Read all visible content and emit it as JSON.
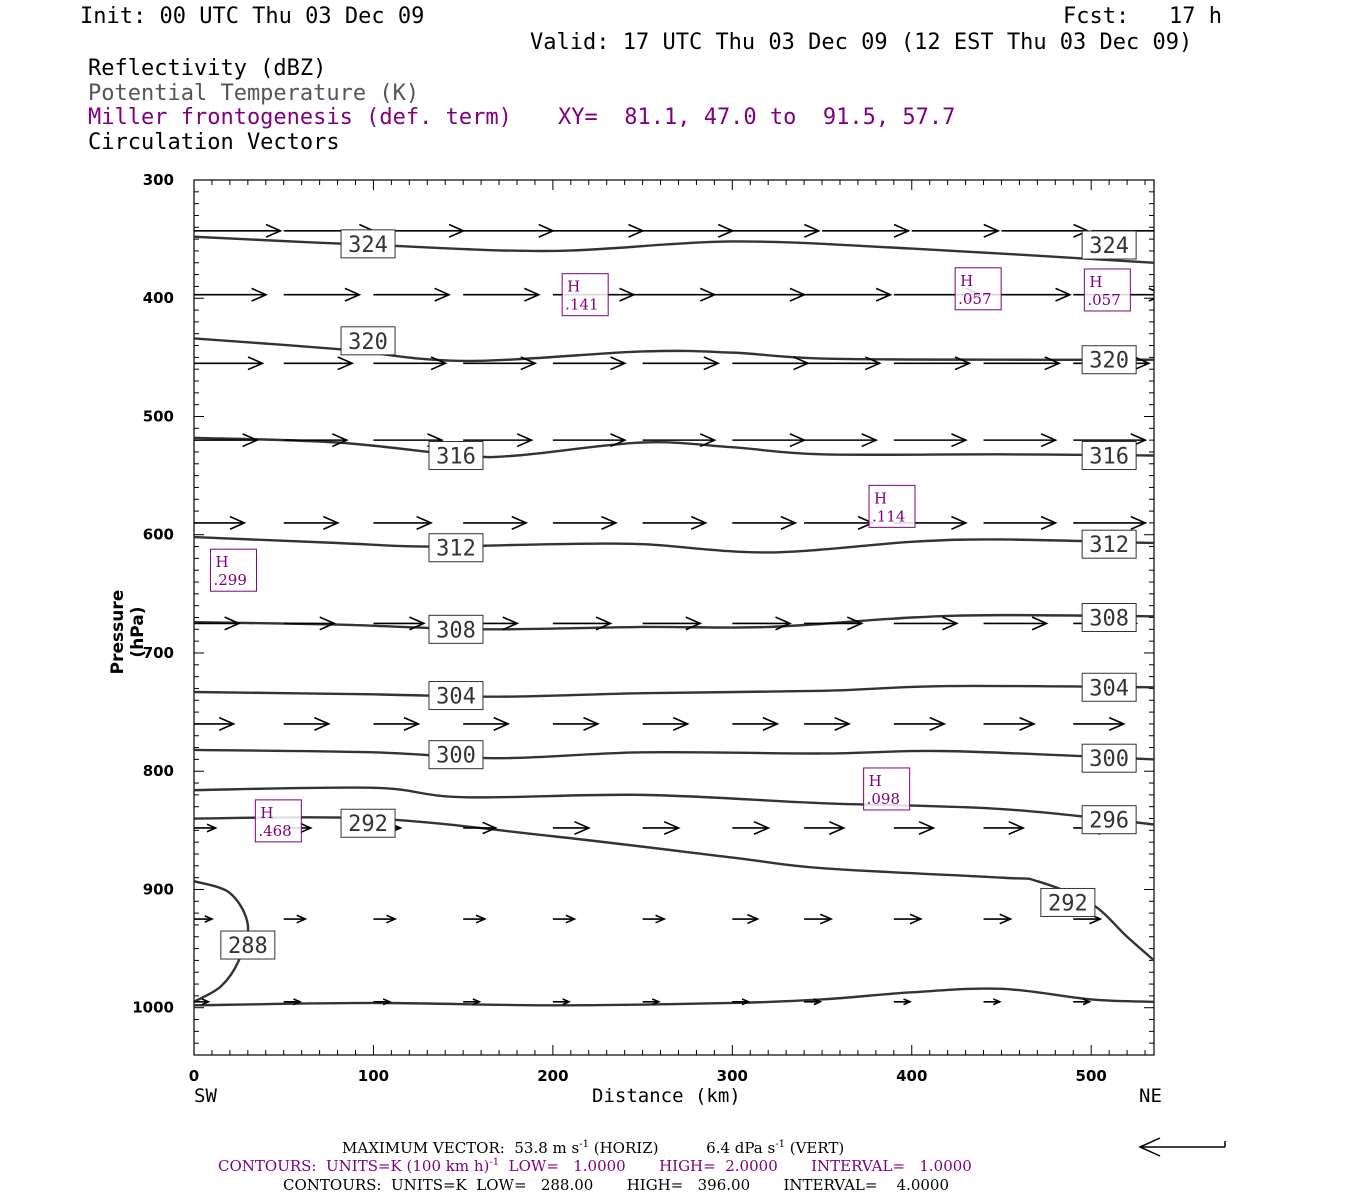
{
  "header": {
    "init": "Init: 00 UTC Thu 03 Dec 09",
    "fcst": "Fcst:   17 h",
    "valid": "Valid: 17 UTC Thu 03 Dec 09 (12 EST Thu 03 Dec 09)",
    "fields": [
      {
        "label": "Reflectivity (dBZ)",
        "color": "#000000"
      },
      {
        "label": "Potential Temperature (K)",
        "color": "#555555"
      },
      {
        "label": "Miller frontogenesis (def. term)",
        "color": "#800080"
      },
      {
        "label": "Circulation Vectors",
        "color": "#000000"
      }
    ],
    "xy": "XY=  81.1, 47.0 to  91.5, 57.7"
  },
  "chart_data": {
    "type": "line",
    "chart": "cross-section",
    "xlabel": "Distance (km)",
    "ylabel": "Pressure (hPa)",
    "xlim": [
      0,
      535
    ],
    "ylim": [
      1040,
      300
    ],
    "x_ticks": [
      0,
      100,
      200,
      300,
      400,
      500
    ],
    "y_ticks": [
      300,
      400,
      500,
      600,
      700,
      800,
      900,
      1000
    ],
    "left_end": "SW",
    "right_end": "NE",
    "theta_contours": [
      {
        "value": "324",
        "points": [
          [
            0,
            348
          ],
          [
            100,
            355
          ],
          [
            200,
            360
          ],
          [
            300,
            352
          ],
          [
            400,
            358
          ],
          [
            535,
            370
          ]
        ]
      },
      {
        "value": "320",
        "points": [
          [
            0,
            434
          ],
          [
            80,
            443
          ],
          [
            150,
            453
          ],
          [
            250,
            445
          ],
          [
            300,
            446
          ],
          [
            350,
            451
          ],
          [
            450,
            452
          ],
          [
            535,
            452
          ]
        ]
      },
      {
        "value": "316",
        "points": [
          [
            0,
            518
          ],
          [
            80,
            522
          ],
          [
            150,
            533
          ],
          [
            180,
            533
          ],
          [
            250,
            522
          ],
          [
            300,
            526
          ],
          [
            350,
            532
          ],
          [
            450,
            532
          ],
          [
            535,
            533
          ]
        ]
      },
      {
        "value": "312",
        "points": [
          [
            0,
            602
          ],
          [
            80,
            607
          ],
          [
            130,
            610
          ],
          [
            200,
            608
          ],
          [
            250,
            608
          ],
          [
            320,
            615
          ],
          [
            400,
            606
          ],
          [
            450,
            604
          ],
          [
            535,
            607
          ]
        ]
      },
      {
        "value": "308",
        "points": [
          [
            0,
            674
          ],
          [
            80,
            676
          ],
          [
            160,
            680
          ],
          [
            250,
            678
          ],
          [
            320,
            678
          ],
          [
            400,
            670
          ],
          [
            450,
            668
          ],
          [
            535,
            669
          ]
        ]
      },
      {
        "value": "304",
        "points": [
          [
            0,
            733
          ],
          [
            100,
            735
          ],
          [
            170,
            737
          ],
          [
            250,
            734
          ],
          [
            350,
            732
          ],
          [
            420,
            728
          ],
          [
            535,
            729
          ]
        ]
      },
      {
        "value": "300",
        "points": [
          [
            0,
            782
          ],
          [
            100,
            784
          ],
          [
            170,
            789
          ],
          [
            250,
            784
          ],
          [
            350,
            785
          ],
          [
            420,
            783
          ],
          [
            535,
            790
          ]
        ]
      },
      {
        "value": "296",
        "points": [
          [
            0,
            816
          ],
          [
            100,
            814
          ],
          [
            150,
            822
          ],
          [
            250,
            820
          ],
          [
            350,
            827
          ],
          [
            450,
            832
          ],
          [
            535,
            845
          ]
        ]
      },
      {
        "value": "292",
        "points": [
          [
            0,
            840
          ],
          [
            100,
            840
          ],
          [
            200,
            855
          ],
          [
            300,
            873
          ],
          [
            350,
            882
          ],
          [
            450,
            890
          ],
          [
            470,
            893
          ],
          [
            500,
            912
          ],
          [
            520,
            940
          ],
          [
            535,
            960
          ]
        ]
      },
      {
        "value": "288",
        "points": [
          [
            0,
            893
          ],
          [
            20,
            903
          ],
          [
            30,
            930
          ],
          [
            25,
            960
          ],
          [
            15,
            982
          ],
          [
            0,
            995
          ]
        ]
      },
      {
        "value": "",
        "points": [
          [
            0,
            998
          ],
          [
            100,
            996
          ],
          [
            200,
            998
          ],
          [
            300,
            996
          ],
          [
            350,
            993
          ],
          [
            400,
            987
          ],
          [
            450,
            984
          ],
          [
            500,
            993
          ],
          [
            535,
            995
          ]
        ]
      }
    ],
    "contour_labels": [
      {
        "value": "324",
        "x": 97,
        "p": 354
      },
      {
        "value": "324",
        "x": 510,
        "p": 355
      },
      {
        "value": "320",
        "x": 97,
        "p": 436
      },
      {
        "value": "320",
        "x": 510,
        "p": 452
      },
      {
        "value": "316",
        "x": 146,
        "p": 533
      },
      {
        "value": "316",
        "x": 510,
        "p": 533
      },
      {
        "value": "312",
        "x": 146,
        "p": 611
      },
      {
        "value": "312",
        "x": 510,
        "p": 608
      },
      {
        "value": "308",
        "x": 146,
        "p": 680
      },
      {
        "value": "308",
        "x": 510,
        "p": 670
      },
      {
        "value": "304",
        "x": 146,
        "p": 736
      },
      {
        "value": "304",
        "x": 510,
        "p": 729
      },
      {
        "value": "300",
        "x": 146,
        "p": 786
      },
      {
        "value": "300",
        "x": 510,
        "p": 789
      },
      {
        "value": "292",
        "x": 97,
        "p": 844
      },
      {
        "value": "296",
        "x": 510,
        "p": 841
      },
      {
        "value": "292",
        "x": 487,
        "p": 911
      },
      {
        "value": "288",
        "x": 30,
        "p": 947
      }
    ],
    "highs": [
      {
        "label": "H",
        "value": ".141",
        "x": 218,
        "p": 397
      },
      {
        "label": "H",
        "value": ".057",
        "x": 437,
        "p": 392
      },
      {
        "label": "H",
        "value": ".057",
        "x": 509,
        "p": 393
      },
      {
        "label": "H",
        "value": ".114",
        "x": 389,
        "p": 576
      },
      {
        "label": "H",
        "value": ".299",
        "x": 22,
        "p": 630
      },
      {
        "label": "H",
        "value": ".098",
        "x": 386,
        "p": 815
      },
      {
        "label": "H",
        "value": ".468",
        "x": 47,
        "p": 842
      }
    ],
    "vector_levels": [
      {
        "p": 343,
        "vectors": [
          [
            0,
            48
          ],
          [
            50,
            50
          ],
          [
            100,
            50
          ],
          [
            150,
            50
          ],
          [
            200,
            50
          ],
          [
            250,
            50
          ],
          [
            300,
            48
          ],
          [
            350,
            48
          ],
          [
            400,
            48
          ],
          [
            450,
            48
          ],
          [
            500,
            48
          ]
        ]
      },
      {
        "p": 397,
        "vectors": [
          [
            0,
            40
          ],
          [
            50,
            42
          ],
          [
            100,
            42
          ],
          [
            150,
            42
          ],
          [
            200,
            45
          ],
          [
            240,
            50
          ],
          [
            290,
            50
          ],
          [
            340,
            48
          ],
          [
            390,
            48
          ],
          [
            440,
            48
          ],
          [
            490,
            50
          ]
        ]
      },
      {
        "p": 455,
        "vectors": [
          [
            0,
            38
          ],
          [
            50,
            38
          ],
          [
            100,
            40
          ],
          [
            150,
            40
          ],
          [
            200,
            40
          ],
          [
            250,
            42
          ],
          [
            300,
            42
          ],
          [
            340,
            42
          ],
          [
            390,
            42
          ],
          [
            440,
            42
          ],
          [
            490,
            42
          ]
        ]
      },
      {
        "p": 520,
        "vectors": [
          [
            0,
            35
          ],
          [
            50,
            35
          ],
          [
            100,
            38
          ],
          [
            150,
            38
          ],
          [
            200,
            40
          ],
          [
            250,
            40
          ],
          [
            300,
            40
          ],
          [
            340,
            40
          ],
          [
            390,
            40
          ],
          [
            440,
            40
          ],
          [
            490,
            40
          ]
        ]
      },
      {
        "p": 590,
        "vectors": [
          [
            0,
            28
          ],
          [
            50,
            30
          ],
          [
            100,
            32
          ],
          [
            150,
            35
          ],
          [
            200,
            35
          ],
          [
            250,
            35
          ],
          [
            300,
            35
          ],
          [
            340,
            38
          ],
          [
            390,
            40
          ],
          [
            440,
            40
          ],
          [
            490,
            40
          ]
        ]
      },
      {
        "p": 675,
        "vectors": [
          [
            0,
            25
          ],
          [
            50,
            28
          ],
          [
            100,
            28
          ],
          [
            150,
            30
          ],
          [
            200,
            32
          ],
          [
            250,
            32
          ],
          [
            300,
            32
          ],
          [
            340,
            32
          ],
          [
            390,
            35
          ],
          [
            440,
            35
          ],
          [
            490,
            35
          ]
        ]
      },
      {
        "p": 760,
        "vectors": [
          [
            0,
            22
          ],
          [
            50,
            25
          ],
          [
            100,
            25
          ],
          [
            150,
            25
          ],
          [
            200,
            25
          ],
          [
            250,
            25
          ],
          [
            300,
            25
          ],
          [
            340,
            25
          ],
          [
            390,
            28
          ],
          [
            440,
            28
          ],
          [
            490,
            28
          ]
        ]
      },
      {
        "p": 848,
        "vectors": [
          [
            0,
            12
          ],
          [
            50,
            15
          ],
          [
            100,
            15
          ],
          [
            150,
            18
          ],
          [
            200,
            20
          ],
          [
            250,
            20
          ],
          [
            300,
            20
          ],
          [
            340,
            22
          ],
          [
            390,
            22
          ],
          [
            440,
            22
          ],
          [
            490,
            22
          ]
        ]
      },
      {
        "p": 925,
        "vectors": [
          [
            0,
            10
          ],
          [
            50,
            12
          ],
          [
            100,
            12
          ],
          [
            150,
            12
          ],
          [
            200,
            12
          ],
          [
            250,
            12
          ],
          [
            300,
            14
          ],
          [
            340,
            15
          ],
          [
            390,
            15
          ],
          [
            440,
            15
          ],
          [
            490,
            15
          ]
        ]
      },
      {
        "p": 995,
        "vectors": [
          [
            0,
            8
          ],
          [
            50,
            9
          ],
          [
            100,
            9
          ],
          [
            150,
            9
          ],
          [
            200,
            9
          ],
          [
            250,
            9
          ],
          [
            300,
            9
          ],
          [
            340,
            9
          ],
          [
            390,
            9
          ],
          [
            440,
            9
          ],
          [
            490,
            9
          ]
        ]
      }
    ]
  },
  "footer": {
    "max_vector": "MAXIMUM VECTOR:  53.8 m s^-1 (HORIZ)          6.4 dPa s^-1 (VERT)",
    "max_vector_parts": {
      "a": "MAXIMUM VECTOR:  53.8 m s",
      "a_sup": "-1",
      "b": " (HORIZ)          6.4 dPa s",
      "b_sup": "-1",
      "c": " (VERT)"
    },
    "contours_1": {
      "a": "CONTOURS:  UNITS=K (100 km h)",
      "sup": "-1",
      "b": "  LOW=   1.0000       HIGH=  2.0000       INTERVAL=   1.0000",
      "color": "#800080"
    },
    "contours_2": "CONTOURS:  UNITS=K  LOW=   288.00       HIGH=   396.00       INTERVAL=    4.0000"
  }
}
